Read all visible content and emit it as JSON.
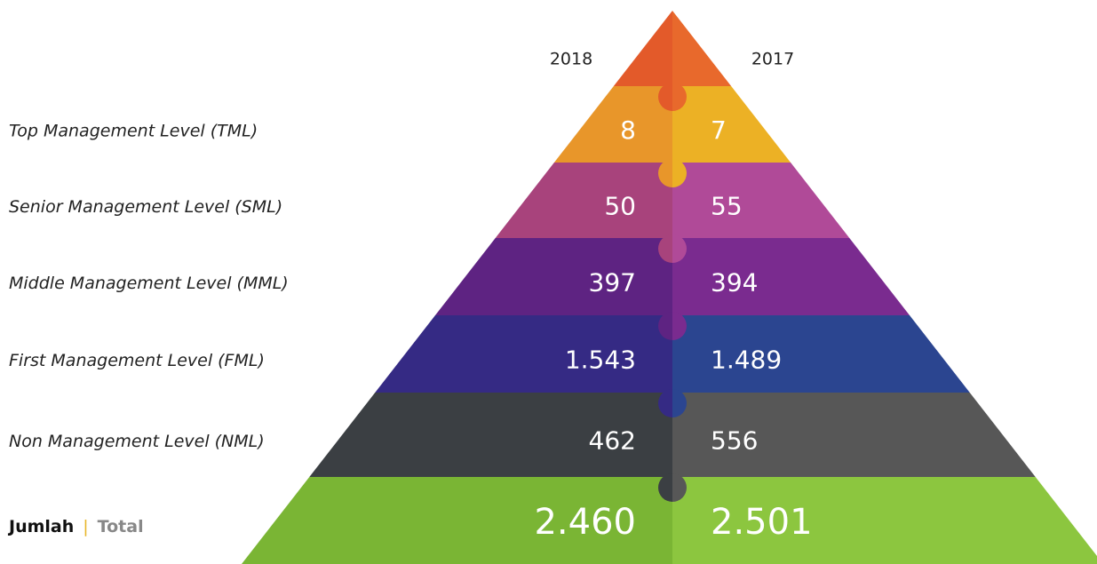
{
  "header": {
    "years": [
      "2018",
      "2017"
    ]
  },
  "levels": [
    {
      "label": "Top Management Level (TML)",
      "values": [
        "8",
        "7"
      ]
    },
    {
      "label": "Senior Management Level (SML)",
      "values": [
        "50",
        "55"
      ]
    },
    {
      "label": "Middle Management Level (MML)",
      "values": [
        "397",
        "394"
      ]
    },
    {
      "label": "First Management Level (FML)",
      "values": [
        "1.543",
        "1.489"
      ]
    },
    {
      "label": "Non Management Level (NML)",
      "values": [
        "462",
        "556"
      ]
    }
  ],
  "total": {
    "label": "Jumlah",
    "separator": "|",
    "sublabel": "Total",
    "values": [
      "2.460",
      "2.501"
    ]
  }
}
